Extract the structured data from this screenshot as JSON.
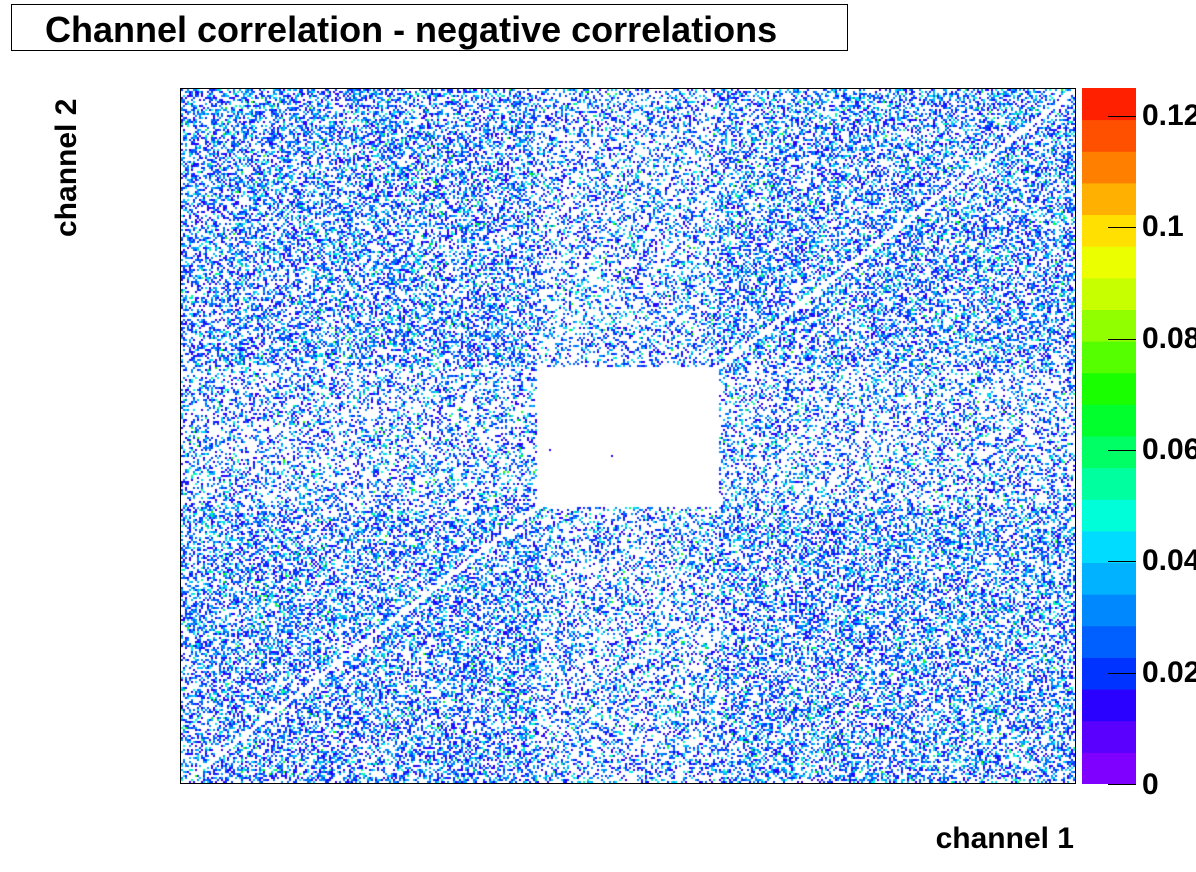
{
  "title": "Channel correlation - negative correlations",
  "chart_data": {
    "type": "heatmap",
    "title": "Channel correlation - negative correlations",
    "xlabel": "channel 1",
    "ylabel": "channel 2",
    "zlim": [
      0,
      0.125
    ],
    "z_ticks": [
      "0",
      "0.02",
      "0.04",
      "0.06",
      "0.08",
      "0.1",
      "0.12"
    ],
    "z_tick_values": [
      0,
      0.02,
      0.04,
      0.06,
      0.08,
      0.1,
      0.12
    ],
    "palette": [
      "#7f00ff",
      "#5a00ff",
      "#2a00ff",
      "#0033ff",
      "#005fff",
      "#0088ff",
      "#00b2ff",
      "#00dcff",
      "#00ffd9",
      "#00ff9f",
      "#00ff65",
      "#00ff2c",
      "#19ff00",
      "#55ff00",
      "#92ff00",
      "#c8ff00",
      "#ecff00",
      "#ffe000",
      "#ffb000",
      "#ff8000",
      "#ff5000",
      "#ff2000"
    ],
    "features": {
      "empty_block": {
        "x_range": [
          0.4,
          0.6
        ],
        "y_range": [
          0.4,
          0.6
        ],
        "description_visible": false
      },
      "diagonal_suppressed": true,
      "typical_values": [
        0.005,
        0.03
      ]
    }
  }
}
